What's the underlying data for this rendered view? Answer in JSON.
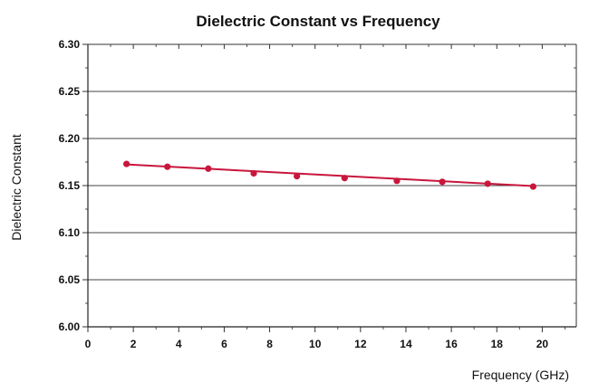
{
  "chart_data": {
    "type": "line",
    "title": "Dielectric Constant vs Frequency",
    "xlabel": "Frequency (GHz)",
    "ylabel": "Dielectric Constant",
    "xlim": [
      0,
      21.5
    ],
    "ylim": [
      6.0,
      6.3
    ],
    "xticks": [
      0,
      2,
      4,
      6,
      8,
      10,
      12,
      14,
      16,
      18,
      20
    ],
    "yticks": [
      6.0,
      6.05,
      6.1,
      6.15,
      6.2,
      6.25,
      6.3
    ],
    "ytick_labels": [
      "6.00",
      "6.05",
      "6.10",
      "6.15",
      "6.20",
      "6.25",
      "6.30"
    ],
    "grid": true,
    "color": "#c8163c",
    "series": [
      {
        "x": [
          1.7,
          3.5,
          5.3,
          7.3,
          9.2,
          11.3,
          13.6,
          15.6,
          17.6,
          19.6
        ],
        "y": [
          6.173,
          6.17,
          6.168,
          6.163,
          6.16,
          6.158,
          6.155,
          6.154,
          6.152,
          6.149
        ]
      }
    ],
    "trend": {
      "x": [
        1.7,
        19.6
      ],
      "y": [
        6.1725,
        6.1495
      ]
    }
  }
}
